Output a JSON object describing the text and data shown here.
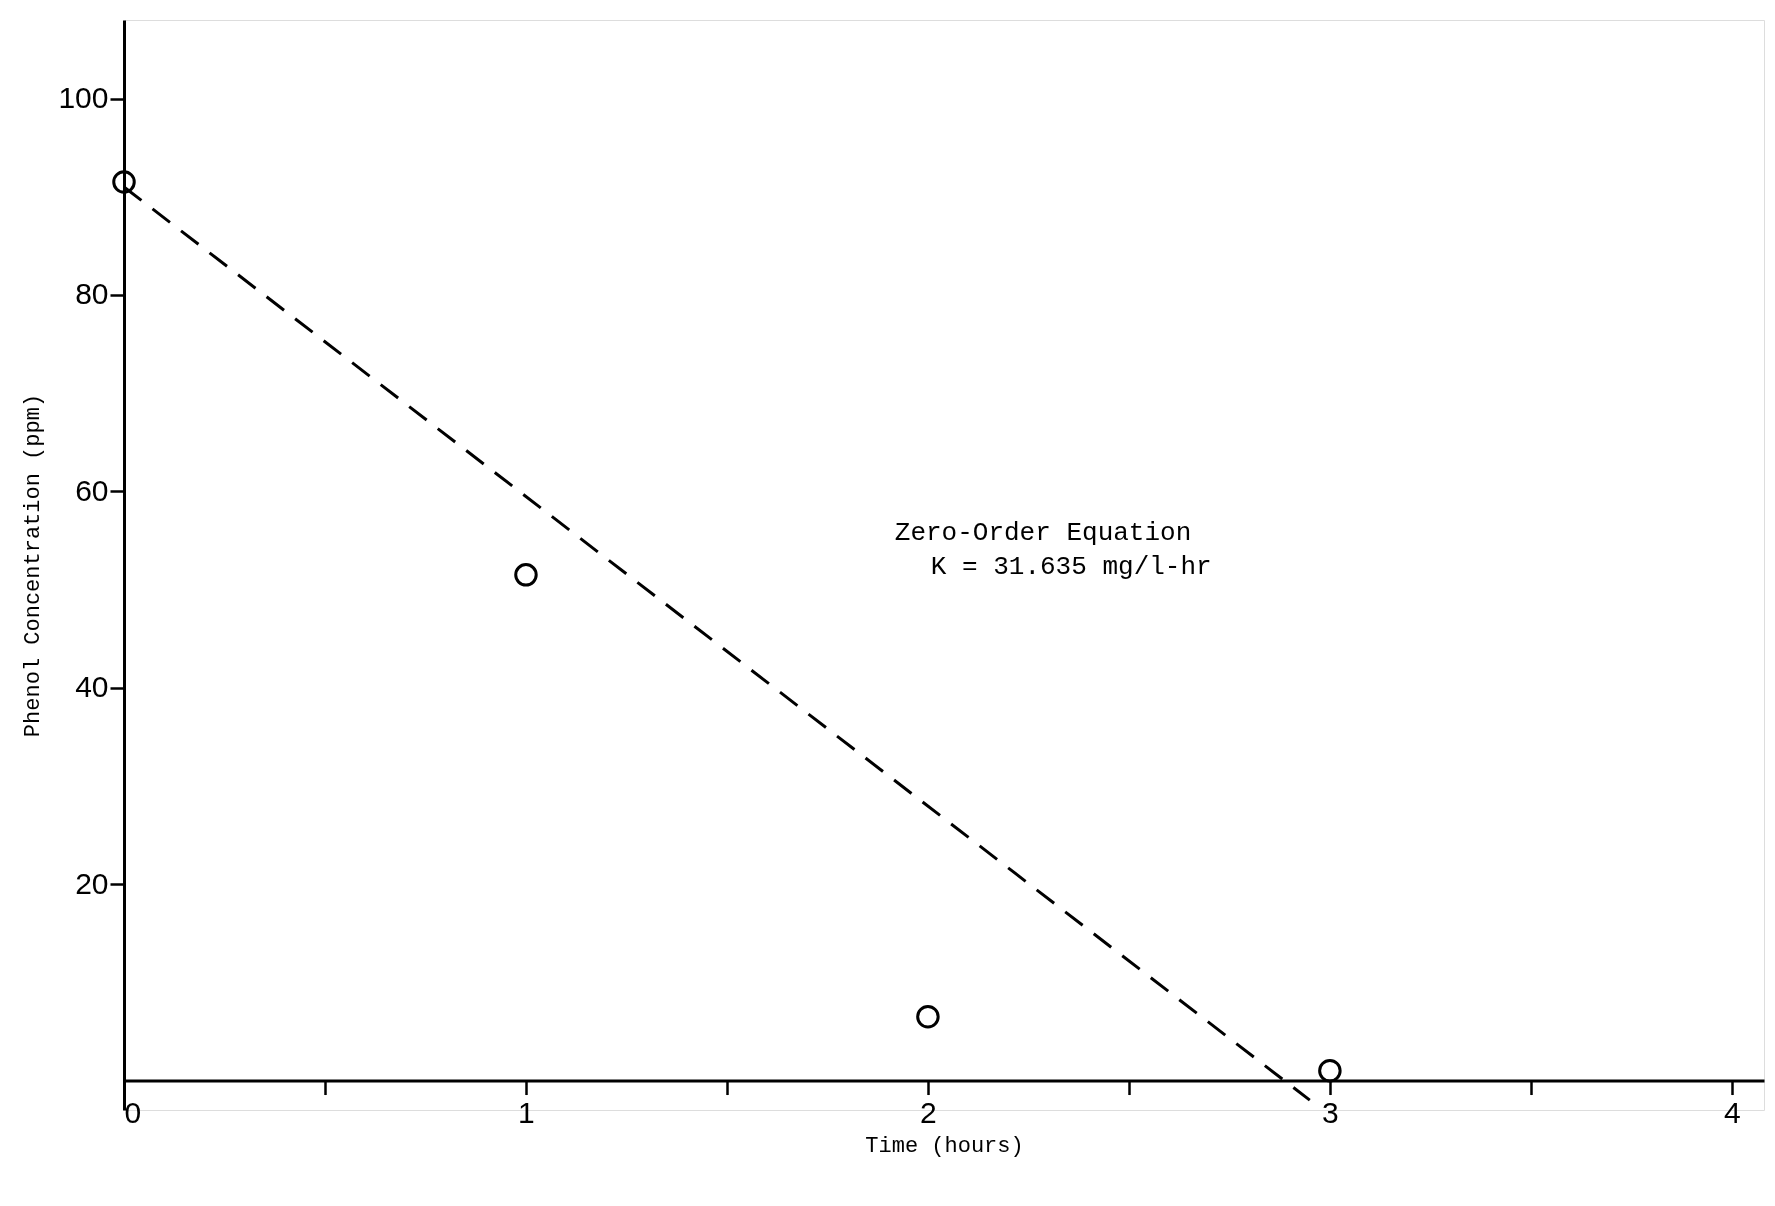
{
  "chart_data": {
    "type": "scatter",
    "xlabel": "Time (hours)",
    "ylabel": "Phenol Concentration (ppm)",
    "annotations": [
      "Zero-Order Equation",
      "K = 31.635 mg/l-hr"
    ],
    "series": [
      {
        "color": "#000000",
        "marker": "circle",
        "x": [
          0,
          1,
          2,
          3
        ],
        "values": [
          91.5,
          51.5,
          6.5,
          1
        ]
      },
      {
        "type": "line",
        "color": "#000000",
        "line_style": "dashed",
        "marker": "none",
        "x": [
          0,
          2.95
        ],
        "values": [
          91,
          -2
        ]
      }
    ],
    "xlim": [
      0,
      4.08
    ],
    "ylim": [
      -3,
      108
    ],
    "xticks": [
      0,
      {
        "value": 0.5,
        "label": null
      },
      1,
      {
        "value": 1.5,
        "label": null
      },
      2,
      {
        "value": 2.5,
        "label": null
      },
      3,
      {
        "value": 3.5,
        "label": null
      },
      4
    ],
    "yticks": [
      20,
      40,
      60,
      80,
      100
    ],
    "grid": false
  }
}
